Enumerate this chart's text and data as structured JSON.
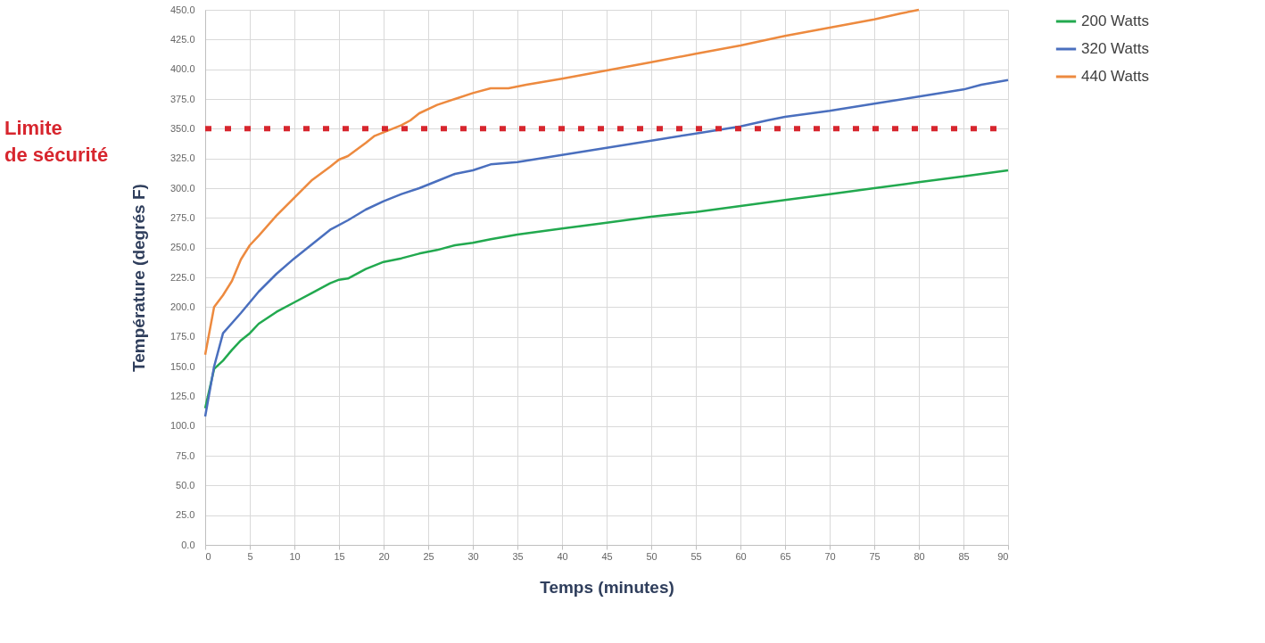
{
  "chart_data": {
    "type": "line",
    "xlabel": "Temps (minutes)",
    "ylabel": "Température  (degrés F)",
    "xlim": [
      0,
      90
    ],
    "xticks": [
      0,
      5,
      10,
      15,
      20,
      25,
      30,
      35,
      40,
      45,
      50,
      55,
      60,
      65,
      70,
      75,
      80,
      85,
      90
    ],
    "ylim": [
      0,
      450
    ],
    "yticks": [
      {
        "value": 0,
        "label": "0.0"
      },
      {
        "value": 25,
        "label": "25.0"
      },
      {
        "value": 50,
        "label": "50.0"
      },
      {
        "value": 75,
        "label": "75.0"
      },
      {
        "value": 100,
        "label": "100.0"
      },
      {
        "value": 125,
        "label": "125.0"
      },
      {
        "value": 150,
        "label": "150.0"
      },
      {
        "value": 175,
        "label": "175.0"
      },
      {
        "value": 200,
        "label": "200.0"
      },
      {
        "value": 225,
        "label": "225.0"
      },
      {
        "value": 250,
        "label": "250.0"
      },
      {
        "value": 275,
        "label": "275.0"
      },
      {
        "value": 300,
        "label": "300.0"
      },
      {
        "value": 325,
        "label": "325.0"
      },
      {
        "value": 350,
        "label": "350.0"
      },
      {
        "value": 375,
        "label": "375.0"
      },
      {
        "value": 400,
        "label": "400.0"
      },
      {
        "value": 425,
        "label": "425.0"
      },
      {
        "value": 450,
        "label": "450.0"
      }
    ],
    "grid": true,
    "legend": "right",
    "marker": "none",
    "line_style": "solid",
    "series": [
      {
        "name": "200 Watts",
        "color": "#22a94f",
        "x": [
          0,
          1,
          2,
          3,
          4,
          5,
          6,
          8,
          10,
          12,
          14,
          15,
          16,
          18,
          20,
          22,
          24,
          26,
          28,
          30,
          32,
          35,
          40,
          45,
          50,
          55,
          60,
          65,
          70,
          75,
          80,
          85,
          90
        ],
        "values": [
          115,
          148,
          155,
          164,
          172,
          178,
          186,
          196,
          204,
          212,
          220,
          223,
          224,
          232,
          238,
          241,
          245,
          248,
          252,
          254,
          257,
          261,
          266,
          271,
          276,
          280,
          285,
          290,
          295,
          300,
          305,
          310,
          315
        ]
      },
      {
        "name": "320 Watts",
        "color": "#4a6fbe",
        "x": [
          0,
          1,
          2,
          4,
          6,
          8,
          10,
          12,
          14,
          16,
          18,
          20,
          22,
          24,
          26,
          28,
          30,
          32,
          35,
          40,
          45,
          50,
          55,
          60,
          63,
          65,
          70,
          75,
          80,
          85,
          87,
          90
        ],
        "values": [
          108,
          150,
          178,
          195,
          213,
          228,
          241,
          253,
          265,
          273,
          282,
          289,
          295,
          300,
          306,
          312,
          315,
          320,
          322,
          328,
          334,
          340,
          346,
          352,
          357,
          360,
          365,
          371,
          377,
          383,
          387,
          391
        ]
      },
      {
        "name": "440 Watts",
        "color": "#ed8a3f",
        "x": [
          0,
          1,
          2,
          3,
          4,
          5,
          6,
          8,
          10,
          12,
          14,
          15,
          16,
          18,
          19,
          20,
          22,
          23,
          24,
          26,
          28,
          30,
          32,
          34,
          36,
          40,
          45,
          50,
          55,
          60,
          65,
          70,
          75,
          78,
          80
        ],
        "values": [
          160,
          200,
          210,
          222,
          240,
          252,
          260,
          277,
          292,
          307,
          318,
          324,
          327,
          338,
          344,
          347,
          353,
          357,
          363,
          370,
          375,
          380,
          384,
          384,
          387,
          392,
          399,
          406,
          413,
          420,
          428,
          435,
          442,
          447,
          450
        ]
      }
    ],
    "ref_lines": [
      {
        "axis": "y",
        "value": 350,
        "label": "Limite de sécurité",
        "color": "#d7262e",
        "line_style": "dotted"
      }
    ]
  }
}
